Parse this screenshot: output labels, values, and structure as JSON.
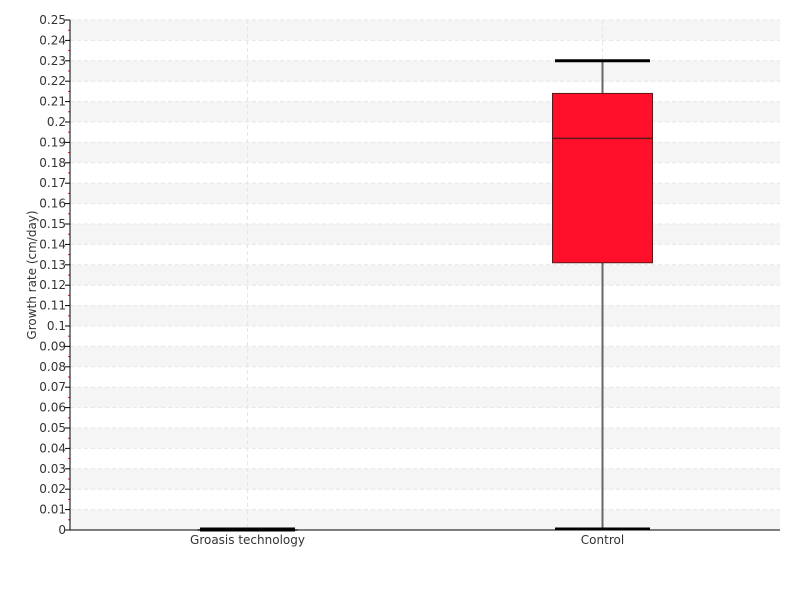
{
  "chart_data": {
    "type": "boxplot",
    "title": "",
    "xlabel": "",
    "ylabel": "Growth rate (cm/day)",
    "ylim": [
      0,
      0.25
    ],
    "ytick_step": 0.01,
    "grid": true,
    "categories": [
      "Groasis technology",
      "Control"
    ],
    "boxes": [
      {
        "category": "Groasis technology",
        "min": 0,
        "q1": 0,
        "median": 0,
        "q3": 0,
        "max": 0
      },
      {
        "category": "Control",
        "min": 0,
        "q1": 0.131,
        "median": 0.192,
        "q3": 0.214,
        "max": 0.23
      }
    ],
    "colors": {
      "box_fill": "#ff0f2a",
      "box_stroke": "#5a1a1a",
      "whisker": "#666666",
      "cap": "#000000",
      "minor_tick": "#e02020",
      "band": "#f5f5f5",
      "grid": "#e6e6e6"
    }
  }
}
